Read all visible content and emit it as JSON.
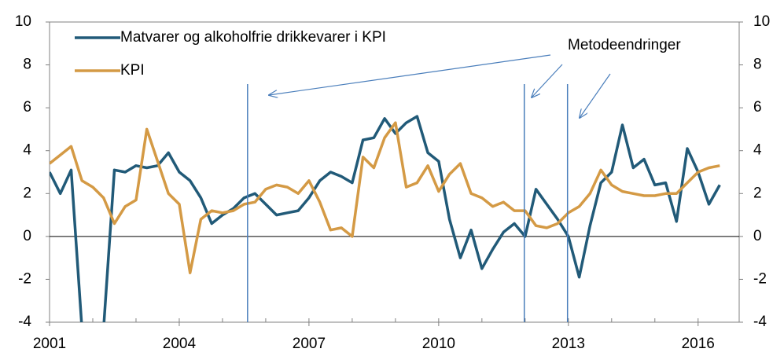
{
  "chart_data": {
    "type": "line",
    "x": [
      2001.0,
      2001.25,
      2001.5,
      2001.75,
      2002.0,
      2002.25,
      2002.5,
      2002.75,
      2003.0,
      2003.25,
      2003.5,
      2003.75,
      2004.0,
      2004.25,
      2004.5,
      2004.75,
      2005.0,
      2005.25,
      2005.5,
      2005.75,
      2006.0,
      2006.25,
      2006.5,
      2006.75,
      2007.0,
      2007.25,
      2007.5,
      2007.75,
      2008.0,
      2008.25,
      2008.5,
      2008.75,
      2009.0,
      2009.25,
      2009.5,
      2009.75,
      2010.0,
      2010.25,
      2010.5,
      2010.75,
      2011.0,
      2011.25,
      2011.5,
      2011.75,
      2012.0,
      2012.25,
      2012.5,
      2012.75,
      2013.0,
      2013.25,
      2013.5,
      2013.75,
      2014.0,
      2014.25,
      2014.5,
      2014.75,
      2015.0,
      2015.25,
      2015.5,
      2015.75,
      2016.0,
      2016.25,
      2016.5
    ],
    "series": [
      {
        "name": "Matvarer og alkoholfrie drikkevarer i KPI",
        "color": "#215a78",
        "values": [
          3.0,
          2.0,
          3.1,
          -4.3,
          -4.3,
          -4.3,
          3.1,
          3.0,
          3.3,
          3.2,
          3.3,
          3.9,
          3.0,
          2.6,
          1.8,
          0.6,
          1.0,
          1.3,
          1.8,
          2.0,
          1.5,
          1.0,
          1.1,
          1.2,
          1.8,
          2.6,
          3.0,
          2.8,
          2.5,
          4.5,
          4.6,
          5.5,
          4.8,
          5.3,
          5.6,
          3.9,
          3.5,
          0.8,
          -1.0,
          0.3,
          -1.5,
          -0.6,
          0.2,
          0.6,
          0.0,
          2.2,
          1.5,
          0.8,
          0.0,
          -1.9,
          0.5,
          2.5,
          3.0,
          5.2,
          3.2,
          3.6,
          2.4,
          2.5,
          0.7,
          4.1,
          3.0,
          1.5,
          2.4
        ]
      },
      {
        "name": "KPI",
        "color": "#d49a45",
        "values": [
          3.4,
          3.8,
          4.2,
          2.6,
          2.3,
          1.8,
          0.6,
          1.4,
          1.7,
          5.0,
          3.5,
          2.0,
          1.5,
          -1.7,
          0.8,
          1.2,
          1.1,
          1.2,
          1.5,
          1.6,
          2.2,
          2.4,
          2.3,
          2.0,
          2.6,
          1.6,
          0.3,
          0.4,
          0.0,
          3.7,
          3.2,
          4.6,
          5.3,
          2.3,
          2.5,
          3.3,
          2.1,
          2.9,
          3.4,
          2.0,
          1.8,
          1.4,
          1.6,
          1.2,
          1.2,
          0.5,
          0.4,
          0.6,
          1.1,
          1.4,
          2.0,
          3.1,
          2.4,
          2.1,
          2.0,
          1.9,
          1.9,
          2.0,
          2.0,
          2.5,
          3.0,
          3.2,
          3.3
        ]
      }
    ],
    "xlim": [
      2001,
      2016.95
    ],
    "xticks": [
      2001,
      2004,
      2007,
      2010,
      2013,
      2016
    ],
    "ylim": [
      -4,
      10
    ],
    "yticks": [
      -4,
      -2,
      0,
      2,
      4,
      6,
      8,
      10
    ],
    "y2lim": [
      -4,
      10
    ],
    "y2ticks": [
      -4,
      -2,
      0,
      2,
      4,
      6,
      8,
      10
    ],
    "method_changes": [
      2005.58,
      2011.98,
      2012.98
    ],
    "method_change_color": "#4a7ebb",
    "annotation": "Metodeendringer",
    "legend": "upper left"
  }
}
